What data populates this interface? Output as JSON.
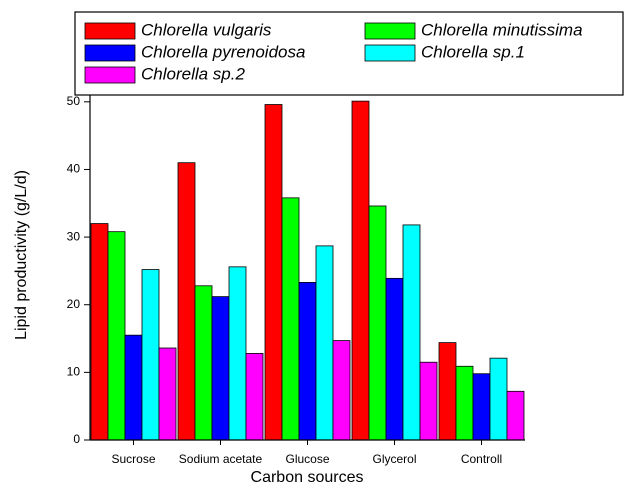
{
  "chart_data": {
    "type": "bar",
    "x_label": "Carbon sources",
    "y_label": "Lipid productivity (g/L/d)",
    "categories": [
      "Sucrose",
      "Sodium acetate",
      "Glucose",
      "Glycerol",
      "Controll"
    ],
    "series": [
      {
        "name": "Chlorella vulgaris",
        "color": "#ff0000",
        "values": [
          32,
          41,
          49.6,
          50.1,
          14.4
        ]
      },
      {
        "name": "Chlorella minutissima",
        "color": "#00ff00",
        "values": [
          30.8,
          22.8,
          35.8,
          34.6,
          10.9
        ]
      },
      {
        "name": "Chlorella pyrenoidosa",
        "color": "#0000ff",
        "values": [
          15.5,
          21.2,
          23.3,
          23.9,
          9.8
        ]
      },
      {
        "name": "Chlorella sp.1",
        "color": "#00ffff",
        "values": [
          25.2,
          25.6,
          28.7,
          31.8,
          12.1
        ]
      },
      {
        "name": "Chlorella sp.2",
        "color": "#ff00ff",
        "values": [
          13.6,
          12.8,
          14.7,
          11.5,
          7.2
        ]
      }
    ],
    "ylim": [
      0,
      55
    ],
    "yticks": [
      0,
      10,
      20,
      30,
      40,
      50
    ]
  }
}
